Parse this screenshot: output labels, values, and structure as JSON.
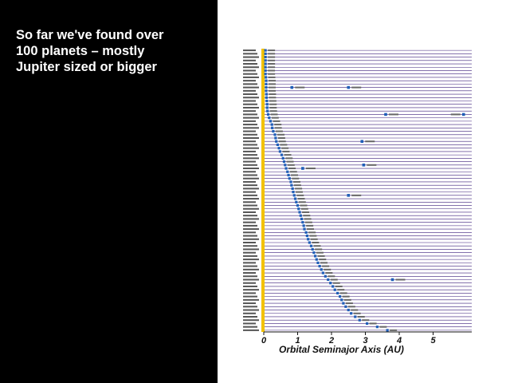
{
  "slide": {
    "headline_lines": [
      "So far we've found over",
      "100 planets – mostly",
      "Jupiter sized or bigger"
    ],
    "background_left": "#000000",
    "background_right": "#ffffff",
    "text_color": "#ffffff"
  },
  "chart_data": {
    "type": "scatter",
    "xlabel": "Orbital Seminajor Axis  (AU)",
    "x_ticks": [
      "0",
      "1",
      "2",
      "3",
      "4",
      "5"
    ],
    "xlim": [
      0,
      6
    ],
    "colors": {
      "point": "#1f5fb8",
      "line": "#3a1f7a",
      "star_strip": "#f2c200",
      "axis": "#111111"
    },
    "systems_count": 84,
    "inner_planets_au": [
      0.05,
      0.05,
      0.05,
      0.05,
      0.05,
      0.05,
      0.05,
      0.05,
      0.06,
      0.07,
      0.07,
      0.07,
      0.07,
      0.08,
      0.08,
      0.09,
      0.1,
      0.1,
      0.11,
      0.13,
      0.16,
      0.2,
      0.24,
      0.25,
      0.28,
      0.33,
      0.35,
      0.37,
      0.41,
      0.45,
      0.48,
      0.53,
      0.57,
      0.6,
      0.63,
      0.66,
      0.7,
      0.73,
      0.76,
      0.8,
      0.82,
      0.85,
      0.87,
      0.9,
      0.93,
      0.96,
      1.0,
      1.03,
      1.06,
      1.09,
      1.12,
      1.15,
      1.18,
      1.2,
      1.25,
      1.28,
      1.31,
      1.35,
      1.4,
      1.44,
      1.48,
      1.52,
      1.56,
      1.6,
      1.65,
      1.7,
      1.75,
      1.82,
      1.9,
      1.97,
      2.04,
      2.1,
      2.18,
      2.25,
      2.3,
      2.35,
      2.42,
      2.5,
      2.58,
      2.7,
      2.83,
      3.05,
      3.35,
      3.65
    ],
    "outer_planets": [
      {
        "row": 11,
        "au": 0.83
      },
      {
        "row": 11,
        "au": 2.5
      },
      {
        "row": 19,
        "au": 3.6
      },
      {
        "row": 19,
        "au": 5.9
      },
      {
        "row": 27,
        "au": 2.9
      },
      {
        "row": 34,
        "au": 2.95
      },
      {
        "row": 35,
        "au": 1.15
      },
      {
        "row": 43,
        "au": 2.5
      },
      {
        "row": 68,
        "au": 3.8
      }
    ]
  }
}
